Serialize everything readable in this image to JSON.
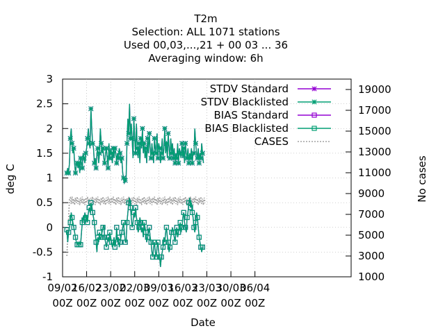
{
  "chart_data": {
    "type": "line",
    "title_lines": [
      "T2m",
      "Selection: ALL    1071 stations",
      "Used  00,03,...,21  + 00 03 ... 36",
      "Averaging window:  6h"
    ],
    "xlabel": "Date",
    "ylabel": "deg C",
    "y2label": "No cases",
    "x_axis_unit": "days since 09/02",
    "xlim": [
      0,
      84
    ],
    "ylim": [
      -1,
      3
    ],
    "y2lim": [
      1000,
      20000
    ],
    "x_ticks": [
      {
        "value": 0,
        "line1": "09/02",
        "line2": "00Z"
      },
      {
        "value": 7,
        "line1": "16/02",
        "line2": "00Z"
      },
      {
        "value": 14,
        "line1": "23/02",
        "line2": "00Z"
      },
      {
        "value": 21,
        "line1": "02/03",
        "line2": "00Z"
      },
      {
        "value": 28,
        "line1": "09/03",
        "line2": "00Z"
      },
      {
        "value": 35,
        "line1": "16/03",
        "line2": "00Z"
      },
      {
        "value": 42,
        "line1": "23/03",
        "line2": "00Z"
      },
      {
        "value": 49,
        "line1": "30/03",
        "line2": "00Z"
      },
      {
        "value": 56,
        "line1": "06/04",
        "line2": "00Z"
      }
    ],
    "y_ticks": [
      {
        "value": -1,
        "label": "-1"
      },
      {
        "value": -0.5,
        "label": "-0.5"
      },
      {
        "value": 0,
        "label": "0"
      },
      {
        "value": 0.5,
        "label": "0.5"
      },
      {
        "value": 1,
        "label": "1"
      },
      {
        "value": 1.5,
        "label": "1.5"
      },
      {
        "value": 2,
        "label": "2"
      },
      {
        "value": 2.5,
        "label": "2.5"
      },
      {
        "value": 3,
        "label": "3"
      }
    ],
    "y2_ticks": [
      {
        "value": 1000,
        "label": "1000"
      },
      {
        "value": 3000,
        "label": "3000"
      },
      {
        "value": 5000,
        "label": "5000"
      },
      {
        "value": 7000,
        "label": "7000"
      },
      {
        "value": 9000,
        "label": "9000"
      },
      {
        "value": 11000,
        "label": "11000"
      },
      {
        "value": 13000,
        "label": "13000"
      },
      {
        "value": 15000,
        "label": "15000"
      },
      {
        "value": 17000,
        "label": "17000"
      },
      {
        "value": 19000,
        "label": "19000"
      }
    ],
    "x_start_index": 5,
    "x_step": 0.25,
    "series": [
      {
        "name": "STDV Standard",
        "color": "#9400d3",
        "marker": "star",
        "axis": "y",
        "values": [
          1.1,
          1.2,
          1.1,
          1.3,
          1.8,
          2.0,
          1.7,
          1.5,
          1.6,
          1.3,
          1.1,
          1.25,
          1.3,
          1.2,
          1.3,
          1.1,
          1.4,
          1.3,
          1.2,
          1.5,
          1.4,
          1.3,
          1.5,
          1.6,
          1.8,
          2.0,
          1.7,
          1.6,
          2.4,
          2.0,
          1.7,
          1.6,
          1.3,
          1.4,
          1.2,
          1.5,
          1.6,
          1.3,
          1.5,
          2.0,
          1.7,
          1.5,
          1.6,
          1.4,
          1.3,
          1.5,
          1.6,
          1.4,
          1.2,
          1.7,
          1.4,
          1.6,
          1.5,
          1.3,
          1.6,
          1.4,
          1.6,
          1.5,
          1.3,
          1.5,
          1.4,
          1.6,
          1.5,
          1.3,
          1.4,
          1.1,
          1.0,
          0.9,
          0.95,
          1.0,
          1.7,
          2.2,
          1.9,
          2.5,
          1.8,
          2.1,
          1.8,
          1.4,
          2.2,
          1.8,
          1.5,
          2.1,
          1.6,
          1.4,
          1.7,
          1.3,
          1.8,
          1.6,
          2.0,
          1.5,
          1.7,
          1.4,
          1.6,
          1.3,
          1.8,
          1.5,
          1.9,
          1.6,
          1.4,
          1.7,
          1.5,
          1.3,
          1.8,
          1.6,
          1.5,
          1.9,
          1.4,
          1.7,
          1.6,
          1.3,
          1.5,
          1.8,
          1.4,
          1.6,
          2.0,
          1.5,
          1.7,
          1.4,
          1.9,
          1.6,
          1.4,
          1.8,
          1.5,
          1.7,
          1.4,
          1.6,
          1.3,
          1.5,
          1.4,
          1.7,
          1.3,
          1.6,
          1.5,
          1.4,
          1.7,
          1.4,
          1.6,
          1.3,
          1.7,
          1.5,
          1.4,
          1.6,
          1.3,
          1.5,
          1.4,
          1.6,
          1.3,
          1.5,
          1.5,
          2.0,
          1.7,
          1.5,
          1.4,
          1.6,
          1.3,
          1.5,
          1.4,
          1.7,
          1.5,
          1.3
        ]
      },
      {
        "name": "STDV Blacklisted",
        "color": "#009e73",
        "marker": "star",
        "axis": "y",
        "values": [
          1.1,
          1.2,
          1.1,
          1.3,
          1.8,
          2.0,
          1.7,
          1.5,
          1.6,
          1.3,
          1.1,
          1.25,
          1.3,
          1.2,
          1.3,
          1.1,
          1.4,
          1.3,
          1.2,
          1.5,
          1.4,
          1.3,
          1.5,
          1.6,
          1.8,
          2.0,
          1.7,
          1.6,
          2.4,
          2.0,
          1.7,
          1.6,
          1.3,
          1.4,
          1.2,
          1.5,
          1.6,
          1.3,
          1.5,
          2.0,
          1.7,
          1.5,
          1.6,
          1.4,
          1.3,
          1.5,
          1.6,
          1.4,
          1.2,
          1.7,
          1.4,
          1.6,
          1.5,
          1.3,
          1.6,
          1.4,
          1.6,
          1.5,
          1.3,
          1.5,
          1.4,
          1.6,
          1.5,
          1.3,
          1.4,
          1.1,
          1.0,
          0.9,
          0.95,
          1.0,
          1.7,
          2.2,
          1.9,
          2.5,
          1.8,
          2.1,
          1.8,
          1.4,
          2.2,
          1.8,
          1.5,
          2.1,
          1.6,
          1.4,
          1.7,
          1.3,
          1.8,
          1.6,
          2.0,
          1.5,
          1.7,
          1.4,
          1.6,
          1.3,
          1.8,
          1.5,
          1.9,
          1.6,
          1.4,
          1.7,
          1.5,
          1.3,
          1.8,
          1.6,
          1.5,
          1.9,
          1.4,
          1.7,
          1.6,
          1.3,
          1.5,
          1.8,
          1.4,
          1.6,
          2.0,
          1.5,
          1.7,
          1.4,
          1.9,
          1.6,
          1.4,
          1.8,
          1.5,
          1.7,
          1.4,
          1.6,
          1.3,
          1.5,
          1.4,
          1.7,
          1.3,
          1.6,
          1.5,
          1.4,
          1.7,
          1.4,
          1.6,
          1.3,
          1.7,
          1.5,
          1.4,
          1.6,
          1.3,
          1.5,
          1.4,
          1.6,
          1.3,
          1.5,
          1.5,
          2.0,
          1.7,
          1.5,
          1.4,
          1.6,
          1.3,
          1.5,
          1.4,
          1.7,
          1.5,
          1.3
        ]
      },
      {
        "name": "BIAS Standard",
        "color": "#9400d3",
        "marker": "square",
        "axis": "y",
        "values": [
          -0.05,
          -0.3,
          -0.1,
          0.0,
          0.1,
          0.3,
          0.2,
          0.1,
          0.0,
          -0.1,
          -0.2,
          -0.3,
          -0.35,
          -0.3,
          -0.35,
          -0.3,
          -0.35,
          -0.1,
          0.1,
          0.2,
          0.15,
          0.3,
          0.2,
          0.25,
          0.1,
          0.3,
          0.4,
          0.3,
          0.5,
          0.45,
          0.3,
          0.2,
          0.1,
          -0.1,
          -0.3,
          -0.5,
          -0.2,
          -0.3,
          -0.1,
          -0.25,
          -0.2,
          -0.1,
          0.0,
          0.05,
          -0.2,
          -0.3,
          -0.4,
          -0.3,
          -0.2,
          -0.3,
          -0.1,
          -0.2,
          -0.3,
          -0.4,
          -0.3,
          -0.2,
          -0.4,
          -0.3,
          0.0,
          -0.3,
          -0.2,
          -0.4,
          -0.3,
          -0.2,
          -0.1,
          0.0,
          0.1,
          -0.1,
          -0.3,
          -0.3,
          0.1,
          0.3,
          0.5,
          0.6,
          0.4,
          0.2,
          0.0,
          0.1,
          0.3,
          0.2,
          0.4,
          0.2,
          0.1,
          -0.1,
          0.0,
          0.2,
          0.1,
          -0.1,
          0.0,
          -0.2,
          0.1,
          0.0,
          -0.1,
          -0.3,
          -0.2,
          -0.1,
          0.0,
          -0.2,
          -0.3,
          -0.5,
          -0.6,
          -0.4,
          -0.3,
          -0.5,
          -0.6,
          -0.4,
          -0.3,
          -0.5,
          -0.6,
          -0.8,
          -0.6,
          -0.5,
          -0.4,
          -0.2,
          -0.3,
          -0.1,
          0.0,
          -0.2,
          -0.3,
          -0.5,
          -0.4,
          -0.2,
          -0.1,
          0.0,
          -0.1,
          -0.2,
          -0.3,
          -0.1,
          0.0,
          -0.2,
          -0.1,
          0.0,
          0.1,
          -0.1,
          0.0,
          0.2,
          0.3,
          0.1,
          0.0,
          -0.1,
          0.2,
          0.3,
          0.5,
          0.6,
          0.4,
          0.5,
          0.3,
          0.2,
          0.0,
          -0.1,
          0.1,
          0.3,
          0.2,
          0.0,
          -0.2,
          -0.3,
          -0.4,
          -0.5,
          -0.4,
          -0.4
        ]
      },
      {
        "name": "BIAS Blacklisted",
        "color": "#009e73",
        "marker": "square",
        "axis": "y",
        "values": [
          -0.05,
          -0.3,
          -0.1,
          0.0,
          0.1,
          0.3,
          0.2,
          0.1,
          0.0,
          -0.1,
          -0.2,
          -0.3,
          -0.35,
          -0.3,
          -0.35,
          -0.3,
          -0.35,
          -0.1,
          0.1,
          0.2,
          0.15,
          0.3,
          0.2,
          0.25,
          0.1,
          0.3,
          0.4,
          0.3,
          0.5,
          0.45,
          0.3,
          0.2,
          0.1,
          -0.1,
          -0.3,
          -0.5,
          -0.2,
          -0.3,
          -0.1,
          -0.25,
          -0.2,
          -0.1,
          0.0,
          0.05,
          -0.2,
          -0.3,
          -0.4,
          -0.3,
          -0.2,
          -0.3,
          -0.1,
          -0.2,
          -0.3,
          -0.4,
          -0.3,
          -0.2,
          -0.4,
          -0.3,
          0.0,
          -0.3,
          -0.2,
          -0.4,
          -0.3,
          -0.2,
          -0.1,
          0.0,
          0.1,
          -0.1,
          -0.3,
          -0.3,
          0.1,
          0.3,
          0.5,
          0.6,
          0.4,
          0.2,
          0.0,
          0.1,
          0.3,
          0.2,
          0.4,
          0.2,
          0.1,
          -0.1,
          0.0,
          0.2,
          0.1,
          -0.1,
          0.0,
          -0.2,
          0.1,
          0.0,
          -0.1,
          -0.3,
          -0.2,
          -0.1,
          0.0,
          -0.2,
          -0.3,
          -0.5,
          -0.6,
          -0.4,
          -0.3,
          -0.5,
          -0.6,
          -0.4,
          -0.3,
          -0.5,
          -0.6,
          -0.8,
          -0.6,
          -0.5,
          -0.4,
          -0.2,
          -0.3,
          -0.1,
          0.0,
          -0.2,
          -0.3,
          -0.5,
          -0.4,
          -0.2,
          -0.1,
          0.0,
          -0.1,
          -0.2,
          -0.3,
          -0.1,
          0.0,
          -0.2,
          -0.1,
          0.0,
          0.1,
          -0.1,
          0.0,
          0.2,
          0.3,
          0.1,
          0.0,
          -0.1,
          0.2,
          0.3,
          0.5,
          0.6,
          0.4,
          0.5,
          0.3,
          0.2,
          0.0,
          -0.1,
          0.1,
          0.3,
          0.2,
          0.0,
          -0.2,
          -0.3,
          -0.4,
          -0.5,
          -0.4,
          -0.4
        ]
      },
      {
        "name": "CASES",
        "color": "#a0a0a0",
        "marker": "none",
        "dash": true,
        "axis": "y2",
        "values": [
          3000,
          5000,
          6500,
          8500,
          8600,
          8000,
          8700,
          8000,
          8500,
          7900,
          8600,
          8100,
          8700,
          8000,
          8500,
          7900,
          8600,
          8100,
          8700,
          8000,
          8500,
          7900,
          8600,
          8100,
          8700,
          8000,
          8500,
          7900,
          8600,
          8100,
          8700,
          8000,
          8500,
          7900,
          8600,
          8100,
          8700,
          8000,
          8500,
          7900,
          8600,
          8100,
          8700,
          8000,
          8500,
          7900,
          8600,
          8100,
          8700,
          8000,
          8500,
          7900,
          8600,
          8100,
          8700,
          8000,
          8500,
          7900,
          8600,
          8100,
          8700,
          8000,
          8500,
          7900,
          8600,
          8100,
          8700,
          8000,
          8500,
          7900,
          8600,
          8100,
          8700,
          8000,
          8500,
          7900,
          8600,
          8100,
          8700,
          8000,
          8500,
          7900,
          8600,
          8100,
          8700,
          8000,
          8500,
          7900,
          8600,
          8100,
          8700,
          8000,
          8500,
          7900,
          8600,
          8100,
          8700,
          8000,
          8500,
          7900,
          8600,
          8100,
          8700,
          8000,
          8500,
          7900,
          8600,
          8100,
          8700,
          8000,
          8500,
          7900,
          8600,
          8100,
          8700,
          8000,
          8500,
          7900,
          8600,
          8100,
          8700,
          8000,
          8500,
          7900,
          8600,
          8100,
          8700,
          8000,
          8500,
          7900,
          8600,
          8100,
          8700,
          8000,
          8500,
          7900,
          8600,
          8100,
          8700,
          8000,
          8500,
          7900,
          8600,
          8100,
          8700,
          8000,
          8500,
          7900,
          8600,
          8100,
          8700,
          8000,
          8500,
          7900,
          8600,
          8100,
          8700,
          8000,
          8500,
          7900,
          8600,
          8100
        ]
      }
    ],
    "legend_position": "top-right"
  }
}
